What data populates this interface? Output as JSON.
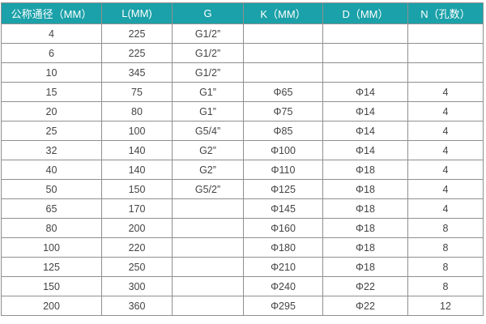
{
  "header_color": "#1ba1a9",
  "columns": [
    "公称通径（MM）",
    "L(MM)",
    "G",
    "K（MM）",
    "D（MM）",
    "N（孔数）"
  ],
  "rows": [
    [
      "4",
      "225",
      "G1/2”",
      "",
      "",
      ""
    ],
    [
      "6",
      "225",
      "G1/2”",
      "",
      "",
      ""
    ],
    [
      "10",
      "345",
      "G1/2”",
      "",
      "",
      ""
    ],
    [
      "15",
      "75",
      "G1”",
      "Φ65",
      "Φ14",
      "4"
    ],
    [
      "20",
      "80",
      "G1”",
      "Φ75",
      "Φ14",
      "4"
    ],
    [
      "25",
      "100",
      "G5/4”",
      "Φ85",
      "Φ14",
      "4"
    ],
    [
      "32",
      "140",
      "G2”",
      "Φ100",
      "Φ14",
      "4"
    ],
    [
      "40",
      "140",
      "G2”",
      "Φ110",
      "Φ18",
      "4"
    ],
    [
      "50",
      "150",
      "G5/2”",
      "Φ125",
      "Φ18",
      "4"
    ],
    [
      "65",
      "170",
      "",
      "Φ145",
      "Φ18",
      "4"
    ],
    [
      "80",
      "200",
      "",
      "Φ160",
      "Φ18",
      "8"
    ],
    [
      "100",
      "220",
      "",
      "Φ180",
      "Φ18",
      "8"
    ],
    [
      "125",
      "250",
      "",
      "Φ210",
      "Φ18",
      "8"
    ],
    [
      "150",
      "300",
      "",
      "Φ240",
      "Φ22",
      "8"
    ],
    [
      "200",
      "360",
      "",
      "Φ295",
      "Φ22",
      "12"
    ]
  ]
}
